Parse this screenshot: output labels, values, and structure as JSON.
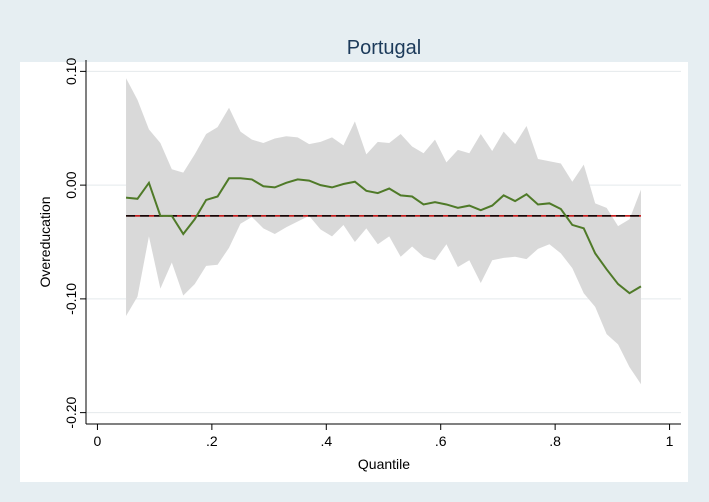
{
  "chart_data": {
    "type": "line",
    "title": "Portugal",
    "x_label": "Quantile",
    "y_label": "Overeducation",
    "x": [
      0.05,
      0.07,
      0.09,
      0.11,
      0.13,
      0.15,
      0.17,
      0.19,
      0.21,
      0.23,
      0.25,
      0.27,
      0.29,
      0.31,
      0.33,
      0.35,
      0.37,
      0.39,
      0.41,
      0.43,
      0.45,
      0.47,
      0.49,
      0.51,
      0.53,
      0.55,
      0.57,
      0.59,
      0.61,
      0.63,
      0.65,
      0.67,
      0.69,
      0.71,
      0.73,
      0.75,
      0.77,
      0.79,
      0.81,
      0.83,
      0.85,
      0.87,
      0.89,
      0.91,
      0.93,
      0.95
    ],
    "series": [
      {
        "color": "#4f7a28",
        "values": [
          -0.011,
          -0.012,
          0.002,
          -0.027,
          -0.027,
          -0.043,
          -0.03,
          -0.013,
          -0.01,
          0.006,
          0.006,
          0.005,
          -0.001,
          -0.002,
          0.002,
          0.005,
          0.004,
          0.0,
          -0.002,
          0.001,
          0.003,
          -0.005,
          -0.007,
          -0.003,
          -0.009,
          -0.01,
          -0.017,
          -0.015,
          -0.017,
          -0.02,
          -0.018,
          -0.022,
          -0.018,
          -0.009,
          -0.014,
          -0.008,
          -0.017,
          -0.016,
          -0.021,
          -0.035,
          -0.038,
          -0.06,
          -0.074,
          -0.087,
          -0.095,
          -0.089
        ]
      }
    ],
    "band": {
      "color": "#d9d9d9",
      "upper": [
        0.094,
        0.075,
        0.049,
        0.037,
        0.014,
        0.011,
        0.027,
        0.045,
        0.051,
        0.068,
        0.047,
        0.04,
        0.037,
        0.041,
        0.043,
        0.042,
        0.036,
        0.038,
        0.042,
        0.035,
        0.056,
        0.027,
        0.038,
        0.037,
        0.045,
        0.034,
        0.028,
        0.04,
        0.02,
        0.031,
        0.028,
        0.045,
        0.03,
        0.047,
        0.036,
        0.052,
        0.023,
        0.021,
        0.019,
        0.003,
        0.018,
        -0.016,
        -0.02,
        -0.036,
        -0.03,
        -0.004
      ],
      "lower": [
        -0.115,
        -0.098,
        -0.045,
        -0.091,
        -0.068,
        -0.097,
        -0.087,
        -0.071,
        -0.07,
        -0.055,
        -0.034,
        -0.028,
        -0.038,
        -0.043,
        -0.037,
        -0.032,
        -0.027,
        -0.039,
        -0.045,
        -0.035,
        -0.05,
        -0.038,
        -0.052,
        -0.045,
        -0.063,
        -0.054,
        -0.063,
        -0.066,
        -0.052,
        -0.072,
        -0.066,
        -0.086,
        -0.066,
        -0.064,
        -0.063,
        -0.065,
        -0.056,
        -0.052,
        -0.06,
        -0.073,
        -0.095,
        -0.107,
        -0.131,
        -0.14,
        -0.16,
        -0.175
      ]
    },
    "hline": -0.027,
    "xlim": [
      -0.02,
      1.02
    ],
    "ylim": [
      -0.21,
      0.11
    ],
    "xticks": [
      0,
      {
        "value": 0.2,
        "label": ".2"
      },
      {
        "value": 0.4,
        "label": ".4"
      },
      {
        "value": 0.6,
        "label": ".6"
      },
      {
        "value": 0.8,
        "label": ".8"
      },
      1
    ],
    "yticks": [
      {
        "value": 0.1,
        "label": "0.10"
      },
      {
        "value": 0,
        "label": "0.00"
      },
      {
        "value": -0.1,
        "label": "-0.10"
      },
      {
        "value": -0.2,
        "label": "-0.20"
      }
    ],
    "grid": true
  }
}
